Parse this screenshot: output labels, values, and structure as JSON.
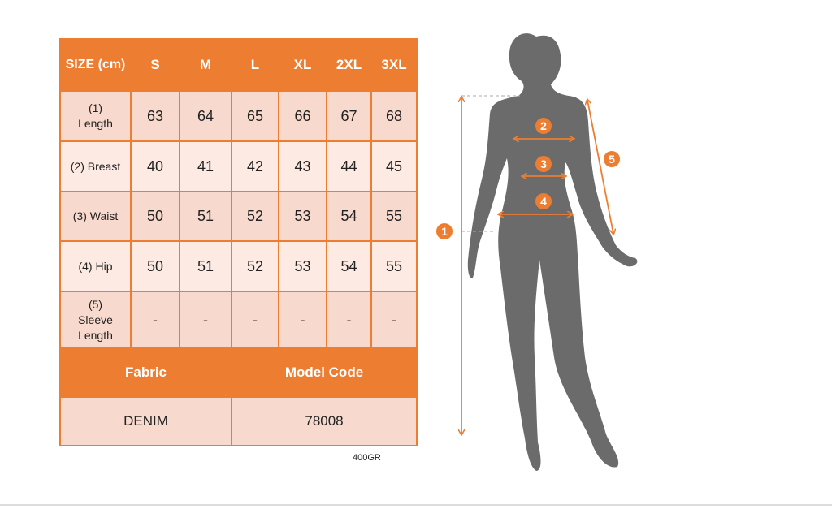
{
  "table": {
    "header": [
      "SIZE (cm)",
      "S",
      "M",
      "L",
      "XL",
      "2XL",
      "3XL"
    ],
    "rows": [
      {
        "label": "(1) Length",
        "values": [
          "63",
          "64",
          "65",
          "66",
          "67",
          "68"
        ]
      },
      {
        "label": "(2) Breast",
        "values": [
          "40",
          "41",
          "42",
          "43",
          "44",
          "45"
        ]
      },
      {
        "label": "(3) Waist",
        "values": [
          "50",
          "51",
          "52",
          "53",
          "54",
          "55"
        ]
      },
      {
        "label": "(4) Hip",
        "values": [
          "50",
          "51",
          "52",
          "53",
          "54",
          "55"
        ]
      },
      {
        "label": "(5) Sleeve Length",
        "values": [
          "-",
          "-",
          "-",
          "-",
          "-",
          "-"
        ]
      }
    ],
    "fabric_label": "Fabric",
    "model_code_label": "Model Code",
    "fabric_value": "DENIM",
    "model_code_value": "78008"
  },
  "weight_note": "400GR",
  "figure": {
    "markers": [
      "1",
      "2",
      "3",
      "4",
      "5"
    ],
    "accent_color": "#ED7D31",
    "silhouette_color": "#6b6b6b"
  }
}
